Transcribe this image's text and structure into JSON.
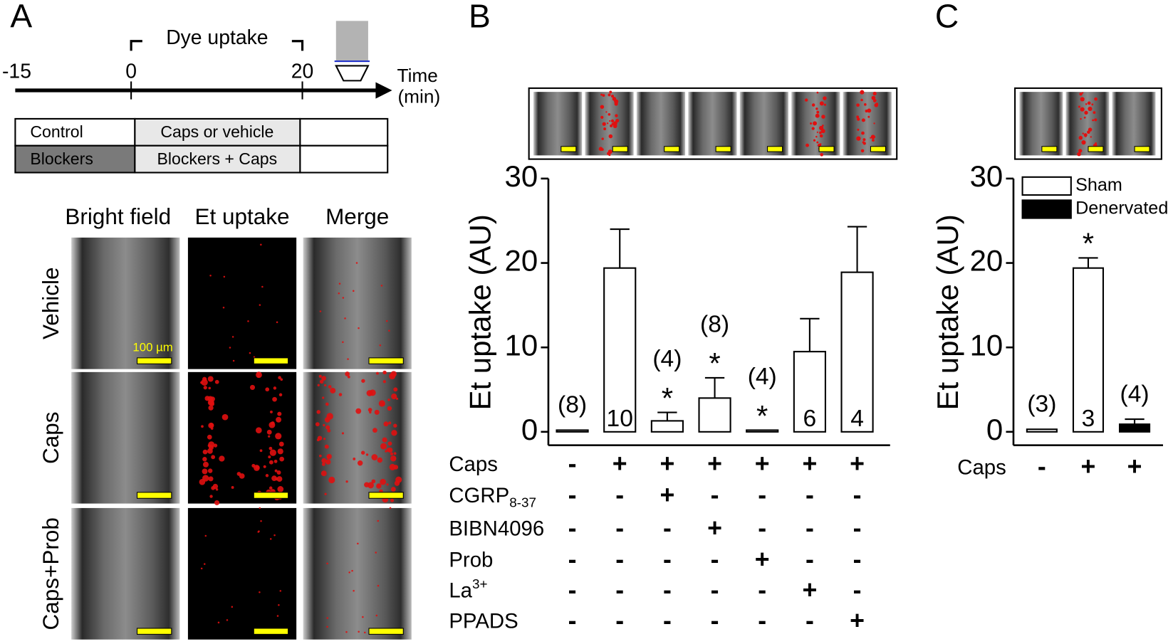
{
  "panel_labels": [
    "A",
    "B",
    "C"
  ],
  "protocol": {
    "timeline_ticks": [
      -15,
      0,
      20
    ],
    "window_label": "Dye uptake",
    "time_label": "Time",
    "time_unit": "(min)",
    "table": [
      [
        "Control",
        "Caps or vehicle"
      ],
      [
        "Blockers",
        "Blockers + Caps"
      ]
    ]
  },
  "images": {
    "columns": [
      "Bright field",
      "Et uptake",
      "Merge"
    ],
    "rows": [
      "Vehicle",
      "Caps",
      "Caps+Prob"
    ],
    "scale_bar": "100 µm"
  },
  "chart_data": [
    {
      "type": "bar",
      "ylabel": "Et uptake (AU)",
      "ylim": [
        0,
        30
      ],
      "yticks": [
        0,
        10,
        20,
        30
      ],
      "color": "#ffffff",
      "values": [
        0.2,
        19.4,
        1.3,
        4,
        0.2,
        9.5,
        18.9
      ],
      "errors": [
        null,
        4.6,
        1,
        2.4,
        null,
        3.9,
        5.4
      ],
      "n_labels": [
        "(8)",
        "10",
        "(4)",
        "(8)",
        "(4)",
        "6",
        "4"
      ],
      "n_label_position": [
        "above",
        "inside",
        "above",
        "above",
        "above",
        "inside",
        "inside"
      ],
      "significance": [
        null,
        null,
        "*",
        "*",
        "*",
        null,
        null
      ],
      "conditions": [
        {
          "name": "Caps",
          "marks": [
            "-",
            "+",
            "+",
            "+",
            "+",
            "+",
            "+"
          ]
        },
        {
          "name": "CGRP",
          "sub": "8-37",
          "marks": [
            "-",
            "-",
            "+",
            "-",
            "-",
            "-",
            "-"
          ]
        },
        {
          "name": "BIBN4096",
          "marks": [
            "-",
            "-",
            "-",
            "+",
            "-",
            "-",
            "-"
          ]
        },
        {
          "name": "Prob",
          "marks": [
            "-",
            "-",
            "-",
            "-",
            "+",
            "-",
            "-"
          ]
        },
        {
          "name": "La",
          "sup": "3+",
          "marks": [
            "-",
            "-",
            "-",
            "-",
            "-",
            "+",
            "-"
          ]
        },
        {
          "name": "PPADS",
          "marks": [
            "-",
            "-",
            "-",
            "-",
            "-",
            "-",
            "+"
          ]
        }
      ]
    },
    {
      "type": "bar",
      "ylabel": "Et uptake (AU)",
      "ylim": [
        0,
        30
      ],
      "yticks": [
        0,
        10,
        20,
        30
      ],
      "legend": "upper left",
      "series": [
        {
          "name": "Sham",
          "color": "#ffffff",
          "values": [
            0.3,
            19.4,
            null
          ],
          "errors": [
            null,
            1.2,
            null
          ]
        },
        {
          "name": "Denervated",
          "color": "#000000",
          "values": [
            null,
            null,
            0.9
          ],
          "errors": [
            null,
            null,
            0.6
          ]
        }
      ],
      "n_labels": [
        "(3)",
        "3",
        "(4)"
      ],
      "n_label_position": [
        "above",
        "inside",
        "above"
      ],
      "significance": [
        null,
        "*",
        null
      ],
      "conditions": [
        {
          "name": "Caps",
          "marks": [
            "-",
            "+",
            "+"
          ]
        }
      ]
    }
  ]
}
